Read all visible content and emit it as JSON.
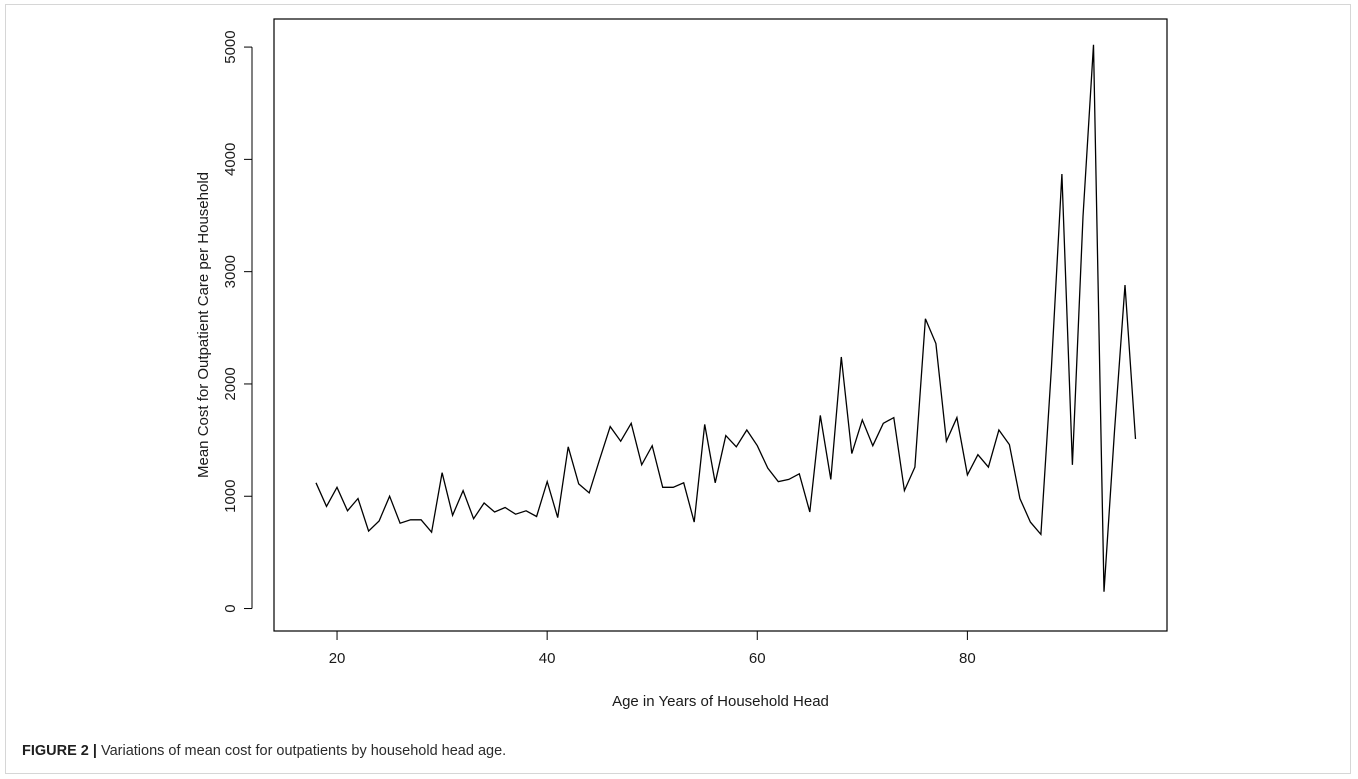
{
  "chart_data": {
    "type": "line",
    "xlabel": "Age in Years of Household Head",
    "ylabel": "Mean Cost for Outpatient Care per Household",
    "xlim": [
      14,
      99
    ],
    "ylim": [
      -200,
      5250
    ],
    "xticks": [
      20,
      40,
      60,
      80
    ],
    "yticks": [
      0,
      1000,
      2000,
      3000,
      4000,
      5000
    ],
    "grid": false,
    "legend": "none",
    "series": [
      {
        "color": "#000000",
        "x": [
          18,
          19,
          20,
          21,
          22,
          23,
          24,
          25,
          26,
          27,
          28,
          29,
          30,
          31,
          32,
          33,
          34,
          35,
          36,
          37,
          38,
          39,
          40,
          41,
          42,
          43,
          44,
          45,
          46,
          47,
          48,
          49,
          50,
          51,
          52,
          53,
          54,
          55,
          56,
          57,
          58,
          59,
          60,
          61,
          62,
          63,
          64,
          65,
          66,
          67,
          68,
          69,
          70,
          71,
          72,
          73,
          74,
          75,
          76,
          77,
          78,
          79,
          80,
          81,
          82,
          83,
          84,
          85,
          86,
          87,
          88,
          89,
          90,
          91,
          92,
          93,
          94,
          95,
          96
        ],
        "y": [
          1120,
          910,
          1080,
          870,
          980,
          690,
          780,
          1000,
          760,
          790,
          790,
          680,
          1210,
          830,
          1050,
          800,
          940,
          860,
          900,
          840,
          870,
          820,
          1130,
          810,
          1440,
          1110,
          1030,
          1330,
          1620,
          1490,
          1650,
          1280,
          1450,
          1080,
          1080,
          1120,
          770,
          1640,
          1120,
          1540,
          1440,
          1590,
          1450,
          1250,
          1130,
          1150,
          1200,
          860,
          1720,
          1150,
          2240,
          1380,
          1680,
          1450,
          1650,
          1700,
          1050,
          1260,
          2580,
          2360,
          1490,
          1700,
          1190,
          1370,
          1260,
          1590,
          1460,
          980,
          770,
          660,
          2140,
          3870,
          1280,
          3490,
          5020,
          150,
          1580,
          2880,
          1510
        ]
      }
    ]
  },
  "caption": {
    "label": "FIGURE 2 |",
    "text": " Variations of mean cost for outpatients by household head age."
  }
}
